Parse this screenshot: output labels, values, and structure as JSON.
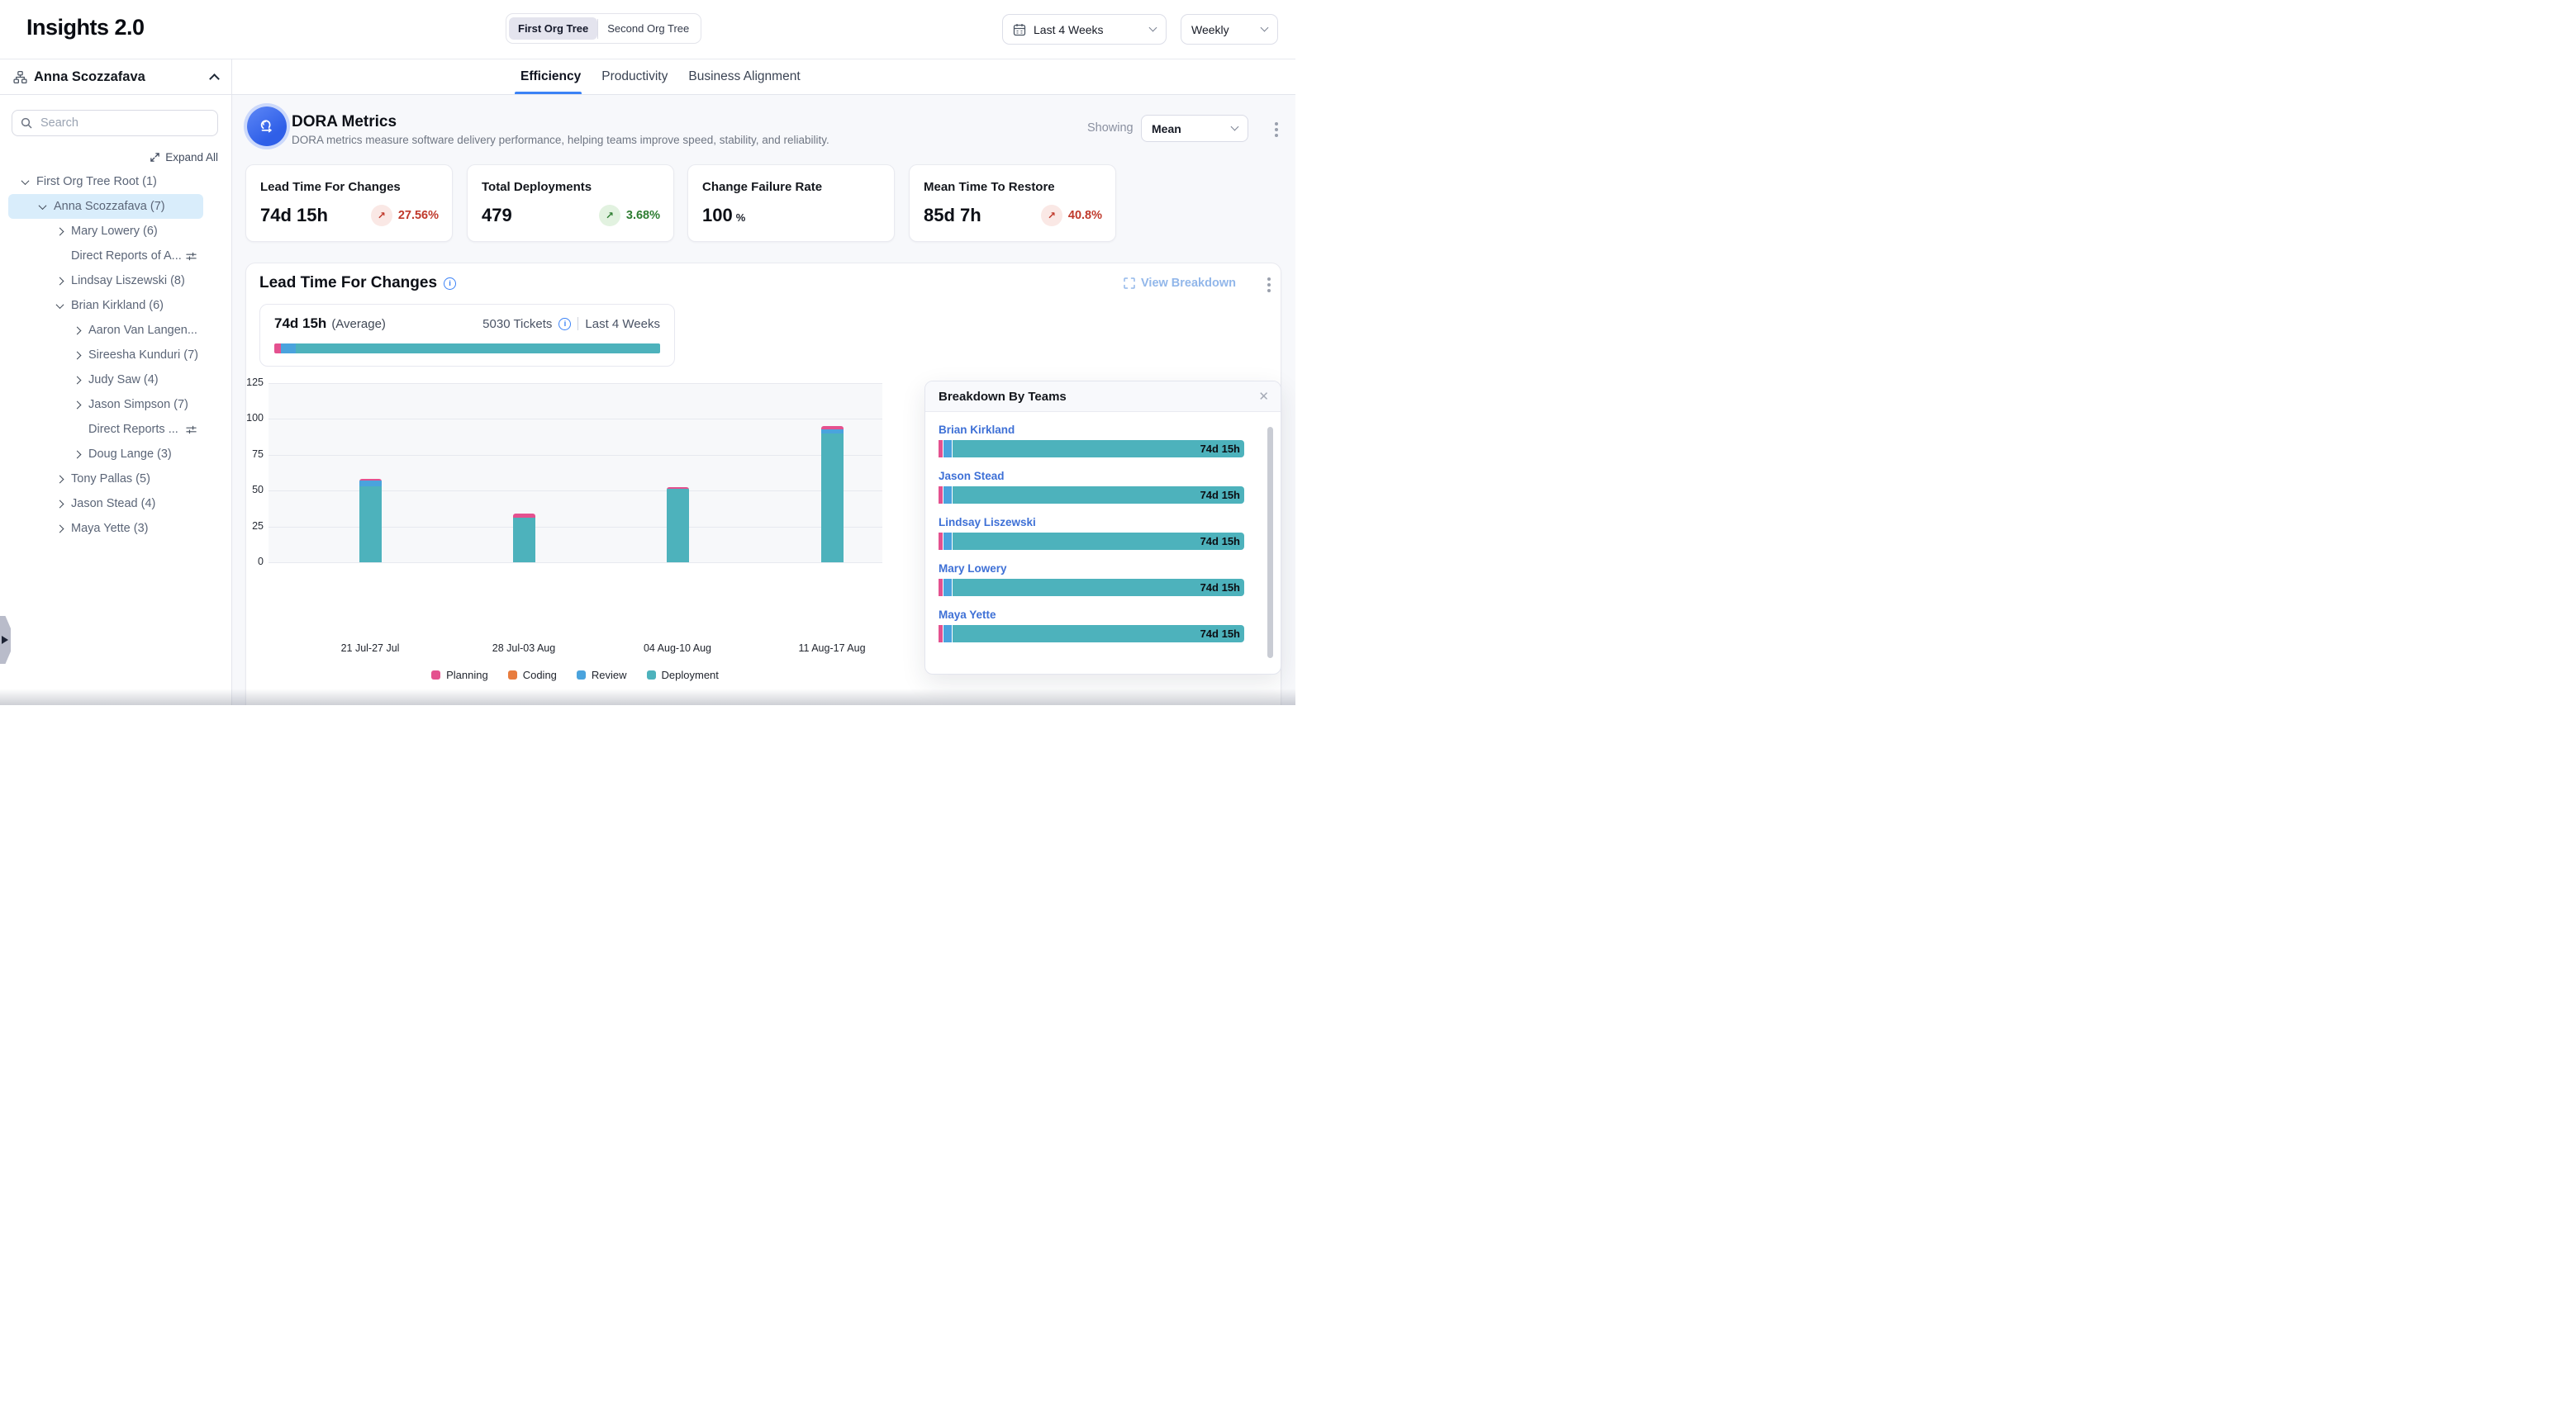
{
  "header": {
    "app_title": "Insights 2.0",
    "org_tree_toggle": {
      "options": [
        "First Org Tree",
        "Second Org Tree"
      ],
      "selected": "First Org Tree"
    },
    "date_range_label": "Last 4 Weeks",
    "granularity_label": "Weekly"
  },
  "sidebar": {
    "root_user": "Anna Scozzafava",
    "search_placeholder": "Search",
    "expand_all_label": "Expand All",
    "tree": [
      {
        "label": "First Org Tree Root (1)",
        "level": 0,
        "chevron": "down",
        "selected": false,
        "filter_icon": false
      },
      {
        "label": "Anna Scozzafava (7)",
        "level": 1,
        "chevron": "down",
        "selected": true,
        "filter_icon": false
      },
      {
        "label": "Mary Lowery (6)",
        "level": 2,
        "chevron": "right",
        "selected": false,
        "filter_icon": false
      },
      {
        "label": "Direct Reports of A...",
        "level": 2,
        "chevron": null,
        "selected": false,
        "filter_icon": true
      },
      {
        "label": "Lindsay Liszewski (8)",
        "level": 2,
        "chevron": "right",
        "selected": false,
        "filter_icon": false
      },
      {
        "label": "Brian Kirkland (6)",
        "level": 2,
        "chevron": "down",
        "selected": false,
        "filter_icon": false
      },
      {
        "label": "Aaron Van Langen...",
        "level": 3,
        "chevron": "right",
        "selected": false,
        "filter_icon": false
      },
      {
        "label": "Sireesha Kunduri (7)",
        "level": 3,
        "chevron": "right",
        "selected": false,
        "filter_icon": false
      },
      {
        "label": "Judy Saw (4)",
        "level": 3,
        "chevron": "right",
        "selected": false,
        "filter_icon": false
      },
      {
        "label": "Jason Simpson (7)",
        "level": 3,
        "chevron": "right",
        "selected": false,
        "filter_icon": false
      },
      {
        "label": "Direct Reports ...",
        "level": 3,
        "chevron": null,
        "selected": false,
        "filter_icon": true
      },
      {
        "label": "Doug Lange (3)",
        "level": 3,
        "chevron": "right",
        "selected": false,
        "filter_icon": false
      },
      {
        "label": "Tony Pallas (5)",
        "level": 2,
        "chevron": "right",
        "selected": false,
        "filter_icon": false
      },
      {
        "label": "Jason Stead (4)",
        "level": 2,
        "chevron": "right",
        "selected": false,
        "filter_icon": false
      },
      {
        "label": "Maya Yette (3)",
        "level": 2,
        "chevron": "right",
        "selected": false,
        "filter_icon": false
      }
    ]
  },
  "tabs": {
    "items": [
      "Efficiency",
      "Productivity",
      "Business Alignment"
    ],
    "active": "Efficiency"
  },
  "dora": {
    "title": "DORA Metrics",
    "description": "DORA metrics measure software delivery performance, helping teams improve speed, stability, and reliability.",
    "showing_label": "Showing",
    "showing_value": "Mean"
  },
  "metric_cards": [
    {
      "title": "Lead Time For Changes",
      "value": "74d 15h",
      "unit": null,
      "delta": "27.56%",
      "trend": "up",
      "tone": "negative"
    },
    {
      "title": "Total Deployments",
      "value": "479",
      "unit": null,
      "delta": "3.68%",
      "trend": "up",
      "tone": "positive"
    },
    {
      "title": "Change Failure Rate",
      "value": "100",
      "unit": "%",
      "delta": null,
      "trend": null,
      "tone": null
    },
    {
      "title": "Mean Time To Restore",
      "value": "85d 7h",
      "unit": null,
      "delta": "40.8%",
      "trend": "up",
      "tone": "negative"
    }
  ],
  "lead_time": {
    "title": "Lead Time For Changes",
    "view_breakdown_label": "View Breakdown",
    "summary": {
      "value": "74d 15h",
      "suffix": "(Average)",
      "tickets": "5030 Tickets",
      "period": "Last 4 Weeks",
      "segments": [
        {
          "phase": "planning",
          "pct": 1.7
        },
        {
          "phase": "review",
          "pct": 3.9
        },
        {
          "phase": "deployment",
          "pct": 94.4
        }
      ]
    }
  },
  "chart_data": {
    "type": "bar",
    "stacked": true,
    "title": "Lead Time For Changes (weekly)",
    "categories": [
      "21 Jul-27 Jul",
      "28 Jul-03 Aug",
      "04 Aug-10 Aug",
      "11 Aug-17 Aug"
    ],
    "series": [
      {
        "name": "Planning",
        "color": "#e4518f",
        "values": [
          1.1,
          2.9,
          1.2,
          2.4
        ]
      },
      {
        "name": "Coding",
        "color": "#e87c3e",
        "values": [
          0,
          0,
          0,
          0
        ]
      },
      {
        "name": "Review",
        "color": "#4aa3dd",
        "values": [
          4.3,
          0,
          0,
          2.8
        ]
      },
      {
        "name": "Deployment",
        "color": "#4db2bc",
        "values": [
          53,
          31,
          51,
          90
        ]
      }
    ],
    "xlabel": "",
    "ylabel": "",
    "ylim": [
      0,
      125
    ],
    "yticks": [
      0,
      25,
      50,
      75,
      100,
      125
    ],
    "grid": true,
    "legend_position": "bottom"
  },
  "breakdown": {
    "title": "Breakdown By Teams",
    "rows": [
      {
        "name": "Brian Kirkland",
        "value": "74d 15h"
      },
      {
        "name": "Jason Stead",
        "value": "74d 15h"
      },
      {
        "name": "Lindsay Liszewski",
        "value": "74d 15h"
      },
      {
        "name": "Mary Lowery",
        "value": "74d 15h"
      },
      {
        "name": "Maya Yette",
        "value": "74d 15h"
      }
    ]
  },
  "colors": {
    "planning": "#e4518f",
    "coding": "#e87c3e",
    "review": "#4aa3dd",
    "deployment": "#4db2bc",
    "accent_blue": "#3b82f6",
    "link_blue": "#3e70d6",
    "negative_red": "#c0392b",
    "negative_bg": "#fae8e5",
    "positive_green": "#2e7d32",
    "positive_bg": "#e2f2e0",
    "selected_row_bg": "#d9edfb"
  }
}
